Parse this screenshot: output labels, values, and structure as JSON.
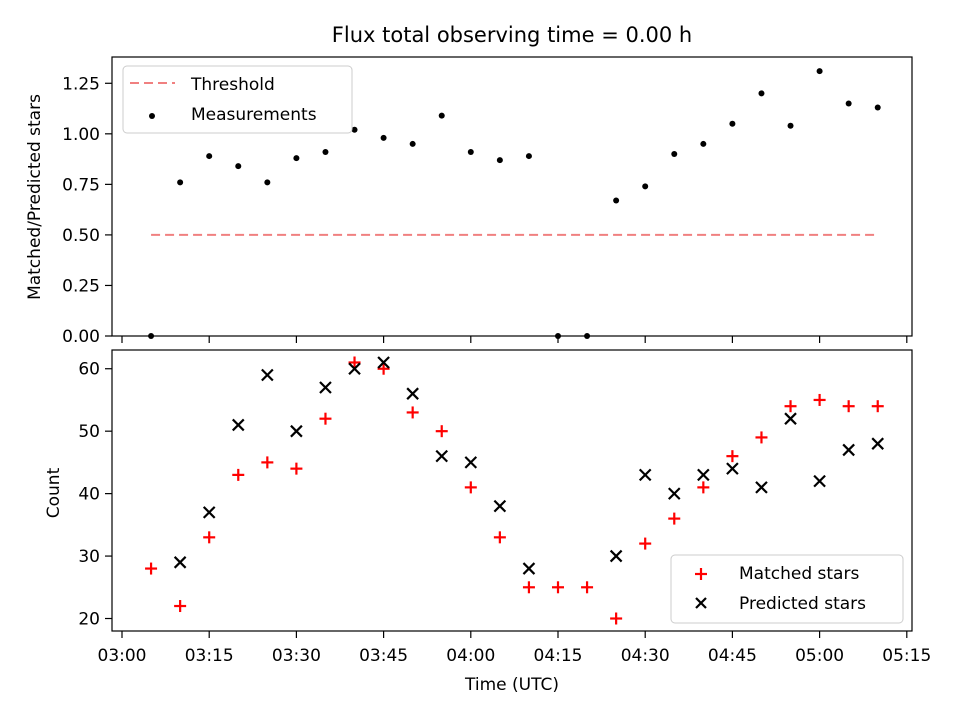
{
  "title": "Flux total observing time = 0.00 h",
  "chart_data": [
    {
      "type": "scatter",
      "title": "Flux total observing time = 0.00 h",
      "xlabel": "",
      "ylabel": "Matched/Predicted stars",
      "ylim": [
        0,
        1.38
      ],
      "yticks": [
        "0.00",
        "0.25",
        "0.50",
        "0.75",
        "1.00",
        "1.25"
      ],
      "ytick_values": [
        0,
        0.25,
        0.5,
        0.75,
        1.0,
        1.25
      ],
      "legend": {
        "position": "upper-left",
        "entries": [
          "Threshold",
          "Measurements"
        ]
      },
      "threshold": {
        "name": "Threshold",
        "value": 0.5,
        "x_range": [
          "03:05",
          "05:10"
        ],
        "color": "#f08080",
        "style": "dashed"
      },
      "series": [
        {
          "name": "Measurements",
          "color": "#000000",
          "marker": "dot",
          "x": [
            "03:05",
            "03:10",
            "03:15",
            "03:20",
            "03:25",
            "03:30",
            "03:35",
            "03:40",
            "03:45",
            "03:50",
            "03:55",
            "04:00",
            "04:05",
            "04:10",
            "04:15",
            "04:20",
            "04:25",
            "04:30",
            "04:35",
            "04:40",
            "04:45",
            "04:50",
            "04:55",
            "05:00",
            "05:05",
            "05:10"
          ],
          "y": [
            0.0,
            0.76,
            0.89,
            0.84,
            0.76,
            0.88,
            0.91,
            1.02,
            0.98,
            0.95,
            1.09,
            0.91,
            0.87,
            0.89,
            0.0,
            0.0,
            0.67,
            0.74,
            0.9,
            0.95,
            1.05,
            1.2,
            1.04,
            1.31,
            1.15,
            1.13
          ]
        }
      ]
    },
    {
      "type": "scatter",
      "title": "",
      "xlabel": "Time (UTC)",
      "ylabel": "Count",
      "ylim": [
        18,
        63
      ],
      "yticks": [
        "20",
        "30",
        "40",
        "50",
        "60"
      ],
      "ytick_values": [
        20,
        30,
        40,
        50,
        60
      ],
      "xticks": [
        "03:00",
        "03:15",
        "03:30",
        "03:45",
        "04:00",
        "04:15",
        "04:30",
        "04:45",
        "05:00",
        "05:15"
      ],
      "legend": {
        "position": "lower-right",
        "entries": [
          "Matched stars",
          "Predicted stars"
        ]
      },
      "series": [
        {
          "name": "Matched stars",
          "color": "#ff0000",
          "marker": "plus",
          "x": [
            "03:05",
            "03:10",
            "03:15",
            "03:20",
            "03:25",
            "03:30",
            "03:35",
            "03:40",
            "03:45",
            "03:50",
            "03:55",
            "04:00",
            "04:05",
            "04:10",
            "04:15",
            "04:20",
            "04:25",
            "04:30",
            "04:35",
            "04:40",
            "04:45",
            "04:50",
            "04:55",
            "05:00",
            "05:05",
            "05:10"
          ],
          "y": [
            28,
            22,
            33,
            43,
            45,
            44,
            52,
            61,
            60,
            53,
            50,
            41,
            33,
            25,
            25,
            25,
            20,
            32,
            36,
            41,
            46,
            49,
            54,
            55,
            54,
            54
          ]
        },
        {
          "name": "Predicted stars",
          "color": "#000000",
          "marker": "x",
          "x": [
            "03:10",
            "03:15",
            "03:20",
            "03:25",
            "03:30",
            "03:35",
            "03:40",
            "03:45",
            "03:50",
            "03:55",
            "04:00",
            "04:05",
            "04:10",
            "04:25",
            "04:30",
            "04:35",
            "04:40",
            "04:45",
            "04:50",
            "04:55",
            "05:00",
            "05:05",
            "05:10"
          ],
          "y": [
            29,
            37,
            51,
            59,
            50,
            57,
            60,
            61,
            56,
            46,
            45,
            38,
            28,
            30,
            43,
            40,
            43,
            44,
            41,
            52,
            42,
            47,
            48
          ]
        }
      ]
    }
  ]
}
